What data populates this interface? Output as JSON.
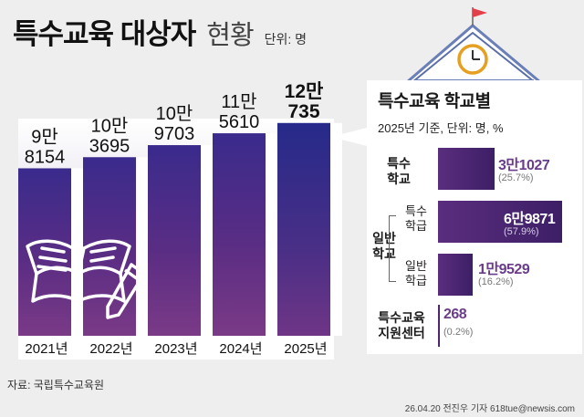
{
  "title": {
    "main": "특수교육 대상자",
    "sub": "현황",
    "unit": "단위: 명"
  },
  "chart_data": {
    "type": "bar",
    "title": "특수교육 대상자 현황",
    "unit": "단위: 명",
    "categories": [
      "2021년",
      "2022년",
      "2023년",
      "2024년",
      "2025년"
    ],
    "values": [
      98154,
      103695,
      109703,
      115610,
      120735
    ],
    "value_labels": [
      [
        "9만",
        "8154"
      ],
      [
        "10만",
        "3695"
      ],
      [
        "10만",
        "9703"
      ],
      [
        "11만",
        "5610"
      ],
      [
        "12만",
        "735"
      ]
    ],
    "highlight_index": 4
  },
  "breakdown": {
    "title": "특수교육 학교별",
    "note": "2025년 기준, 단위: 명, %",
    "group_label": [
      "일반",
      "학교"
    ],
    "rows": [
      {
        "category": [
          "특수",
          "학교"
        ],
        "value": 31027,
        "label": "3만1027",
        "pct": "(25.7%)"
      },
      {
        "sub": [
          "특수",
          "학급"
        ],
        "value": 69871,
        "label": "6만9871",
        "pct": "(57.9%)"
      },
      {
        "sub": [
          "일반",
          "학급"
        ],
        "value": 19529,
        "label": "1만9529",
        "pct": "(16.2%)"
      },
      {
        "category": [
          "특수교육",
          "지원센터"
        ],
        "value": 268,
        "label": "268",
        "pct": "(0.2%)"
      }
    ]
  },
  "colors": {
    "bar_top": "#3b2a8f",
    "bar_bottom": "#6a2f82",
    "highlight": "#2a2c8c",
    "value_color": "#6a3d8a",
    "label_highlight": "#ffffff"
  },
  "icons": [
    "school-building-icon",
    "clock-icon",
    "flag-icon",
    "open-book-icon",
    "pencil-icon"
  ],
  "source": "자료: 국립특수교육원",
  "credit": "26.04.20 전진우 기자 618tue@newsis.com"
}
